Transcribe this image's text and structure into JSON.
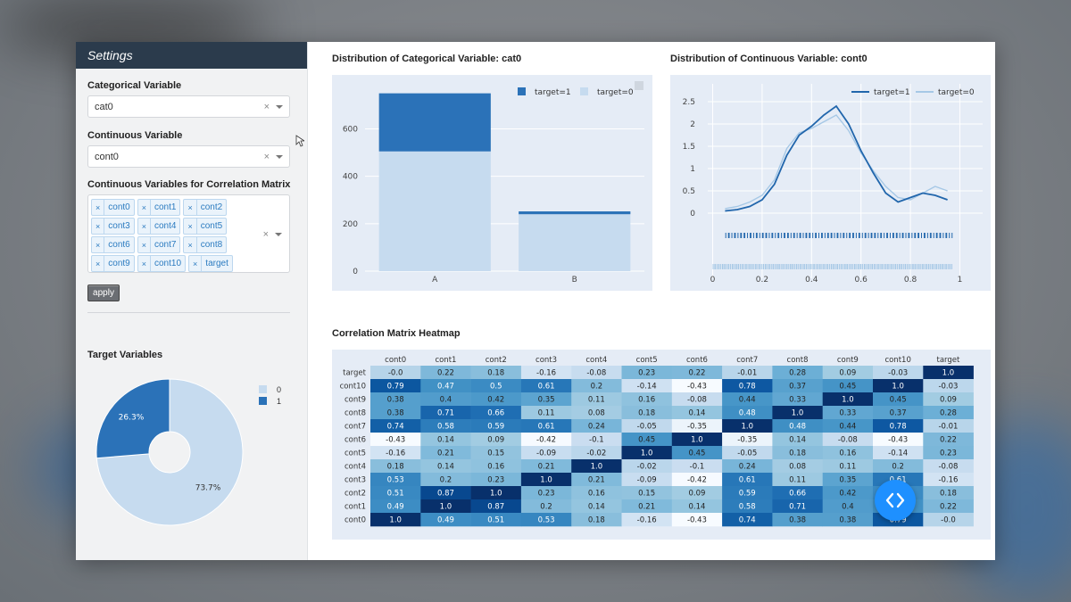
{
  "sidebar": {
    "title": "Settings",
    "categorical": {
      "label": "Categorical Variable",
      "value": "cat0",
      "clear": "×"
    },
    "continuous": {
      "label": "Continuous Variable",
      "value": "cont0",
      "clear": "×"
    },
    "corr_vars": {
      "label": "Continuous Variables for Correlation Matrix",
      "tags": [
        "cont0",
        "cont1",
        "cont2",
        "cont3",
        "cont4",
        "cont5",
        "cont6",
        "cont7",
        "cont8",
        "cont9",
        "cont10",
        "target"
      ],
      "clear": "×"
    },
    "apply_label": "apply",
    "target_label": "Target Variables"
  },
  "pie": {
    "values": [
      73.7,
      26.3
    ],
    "labels": [
      "0",
      "1"
    ],
    "texts": [
      "73.7%",
      "26.3%"
    ],
    "colors": [
      "#c6dbef",
      "#2b72b8"
    ]
  },
  "bar_panel": {
    "title": "Distribution of Categorical Variable: cat0"
  },
  "line_panel": {
    "title": "Distribution of Continuous Variable: cont0"
  },
  "heatmap_panel": {
    "title": "Correlation Matrix Heatmap"
  },
  "chart_data": [
    {
      "type": "bar",
      "categories": [
        "A",
        "B"
      ],
      "series": [
        {
          "name": "target=1",
          "values": [
            245,
            12
          ],
          "color": "#2b72b8"
        },
        {
          "name": "target=0",
          "values": [
            505,
            240
          ],
          "color": "#c6dbef"
        }
      ],
      "yticks": [
        0,
        200,
        400,
        600
      ],
      "ylim": [
        0,
        790
      ],
      "legend": "top-right",
      "stacked": true
    },
    {
      "type": "line",
      "x": [
        0.05,
        0.1,
        0.15,
        0.2,
        0.25,
        0.3,
        0.35,
        0.4,
        0.45,
        0.5,
        0.55,
        0.6,
        0.65,
        0.7,
        0.75,
        0.8,
        0.85,
        0.9,
        0.95
      ],
      "series": [
        {
          "name": "target=1",
          "values": [
            0.05,
            0.08,
            0.15,
            0.3,
            0.65,
            1.3,
            1.75,
            1.95,
            2.2,
            2.4,
            2.0,
            1.4,
            0.9,
            0.45,
            0.25,
            0.35,
            0.45,
            0.4,
            0.3
          ],
          "color": "#2166ac"
        },
        {
          "name": "target=0",
          "values": [
            0.1,
            0.15,
            0.25,
            0.4,
            0.75,
            1.45,
            1.8,
            1.9,
            2.05,
            2.2,
            1.85,
            1.35,
            0.95,
            0.6,
            0.35,
            0.3,
            0.45,
            0.6,
            0.5
          ],
          "color": "#a6c8e6"
        }
      ],
      "xticks": [
        0,
        0.2,
        0.4,
        0.6,
        0.8,
        1
      ],
      "yticks": [
        0,
        0.5,
        1,
        1.5,
        2,
        2.5
      ],
      "xlim": [
        -0.02,
        1.02
      ],
      "ylim": [
        -0.1,
        2.7
      ],
      "legend": "top-right",
      "rug": true
    },
    {
      "type": "heatmap",
      "columns": [
        "cont0",
        "cont1",
        "cont2",
        "cont3",
        "cont4",
        "cont5",
        "cont6",
        "cont7",
        "cont8",
        "cont9",
        "cont10",
        "target"
      ],
      "rows": [
        "target",
        "cont10",
        "cont9",
        "cont8",
        "cont7",
        "cont6",
        "cont5",
        "cont4",
        "cont3",
        "cont2",
        "cont1",
        "cont0"
      ],
      "values": [
        [
          -0.0,
          0.22,
          0.18,
          -0.16,
          -0.08,
          0.23,
          0.22,
          -0.01,
          0.28,
          0.09,
          -0.03,
          1.0
        ],
        [
          0.79,
          0.47,
          0.5,
          0.61,
          0.2,
          -0.14,
          -0.43,
          0.78,
          0.37,
          0.45,
          1.0,
          -0.03
        ],
        [
          0.38,
          0.4,
          0.42,
          0.35,
          0.11,
          0.16,
          -0.08,
          0.44,
          0.33,
          1.0,
          0.45,
          0.09
        ],
        [
          0.38,
          0.71,
          0.66,
          0.11,
          0.08,
          0.18,
          0.14,
          0.48,
          1.0,
          0.33,
          0.37,
          0.28
        ],
        [
          0.74,
          0.58,
          0.59,
          0.61,
          0.24,
          -0.05,
          -0.35,
          1.0,
          0.48,
          0.44,
          0.78,
          -0.01
        ],
        [
          -0.43,
          0.14,
          0.09,
          -0.42,
          -0.1,
          0.45,
          1.0,
          -0.35,
          0.14,
          -0.08,
          -0.43,
          0.22
        ],
        [
          -0.16,
          0.21,
          0.15,
          -0.09,
          -0.02,
          1.0,
          0.45,
          -0.05,
          0.18,
          0.16,
          -0.14,
          0.23
        ],
        [
          0.18,
          0.14,
          0.16,
          0.21,
          1.0,
          -0.02,
          -0.1,
          0.24,
          0.08,
          0.11,
          0.2,
          -0.08
        ],
        [
          0.53,
          0.2,
          0.23,
          1.0,
          0.21,
          -0.09,
          -0.42,
          0.61,
          0.11,
          0.35,
          0.61,
          -0.16
        ],
        [
          0.51,
          0.87,
          1.0,
          0.23,
          0.16,
          0.15,
          0.09,
          0.59,
          0.66,
          0.42,
          0.5,
          0.18
        ],
        [
          0.49,
          1.0,
          0.87,
          0.2,
          0.14,
          0.21,
          0.14,
          0.58,
          0.71,
          0.4,
          0.47,
          0.22
        ],
        [
          1.0,
          0.49,
          0.51,
          0.53,
          0.18,
          -0.16,
          -0.43,
          0.74,
          0.38,
          0.38,
          0.79,
          -0.0
        ]
      ],
      "labels": [
        [
          "-0.0",
          "0.22",
          "0.18",
          "-0.16",
          "-0.08",
          "0.23",
          "0.22",
          "-0.01",
          "0.28",
          "0.09",
          "-0.03",
          "1.0"
        ],
        [
          "0.79",
          "0.47",
          "0.5",
          "0.61",
          "0.2",
          "-0.14",
          "-0.43",
          "0.78",
          "0.37",
          "0.45",
          "1.0",
          "-0.03"
        ],
        [
          "0.38",
          "0.4",
          "0.42",
          "0.35",
          "0.11",
          "0.16",
          "-0.08",
          "0.44",
          "0.33",
          "1.0",
          "0.45",
          "0.09"
        ],
        [
          "0.38",
          "0.71",
          "0.66",
          "0.11",
          "0.08",
          "0.18",
          "0.14",
          "0.48",
          "1.0",
          "0.33",
          "0.37",
          "0.28"
        ],
        [
          "0.74",
          "0.58",
          "0.59",
          "0.61",
          "0.24",
          "-0.05",
          "-0.35",
          "1.0",
          "0.48",
          "0.44",
          "0.78",
          "-0.01"
        ],
        [
          "-0.43",
          "0.14",
          "0.09",
          "-0.42",
          "-0.1",
          "0.45",
          "1.0",
          "-0.35",
          "0.14",
          "-0.08",
          "-0.43",
          "0.22"
        ],
        [
          "-0.16",
          "0.21",
          "0.15",
          "-0.09",
          "-0.02",
          "1.0",
          "0.45",
          "-0.05",
          "0.18",
          "0.16",
          "-0.14",
          "0.23"
        ],
        [
          "0.18",
          "0.14",
          "0.16",
          "0.21",
          "1.0",
          "-0.02",
          "-0.1",
          "0.24",
          "0.08",
          "0.11",
          "0.2",
          "-0.08"
        ],
        [
          "0.53",
          "0.2",
          "0.23",
          "1.0",
          "0.21",
          "-0.09",
          "-0.42",
          "0.61",
          "0.11",
          "0.35",
          "0.61",
          "-0.16"
        ],
        [
          "0.51",
          "0.87",
          "1.0",
          "0.23",
          "0.16",
          "0.15",
          "0.09",
          "0.59",
          "0.66",
          "0.42",
          "0.5",
          "0.18"
        ],
        [
          "0.49",
          "1.0",
          "0.87",
          "0.2",
          "0.14",
          "0.21",
          "0.14",
          "0.58",
          "0.71",
          "0.4",
          "0.47",
          "0.22"
        ],
        [
          "1.0",
          "0.49",
          "0.51",
          "0.53",
          "0.18",
          "-0.16",
          "-0.43",
          "0.74",
          "0.38",
          "0.38",
          "0.79",
          "-0.0"
        ]
      ],
      "colorscale": "Blues"
    }
  ],
  "icons": {
    "code_button": "code-icon",
    "fab_color": "#1e90ff"
  }
}
